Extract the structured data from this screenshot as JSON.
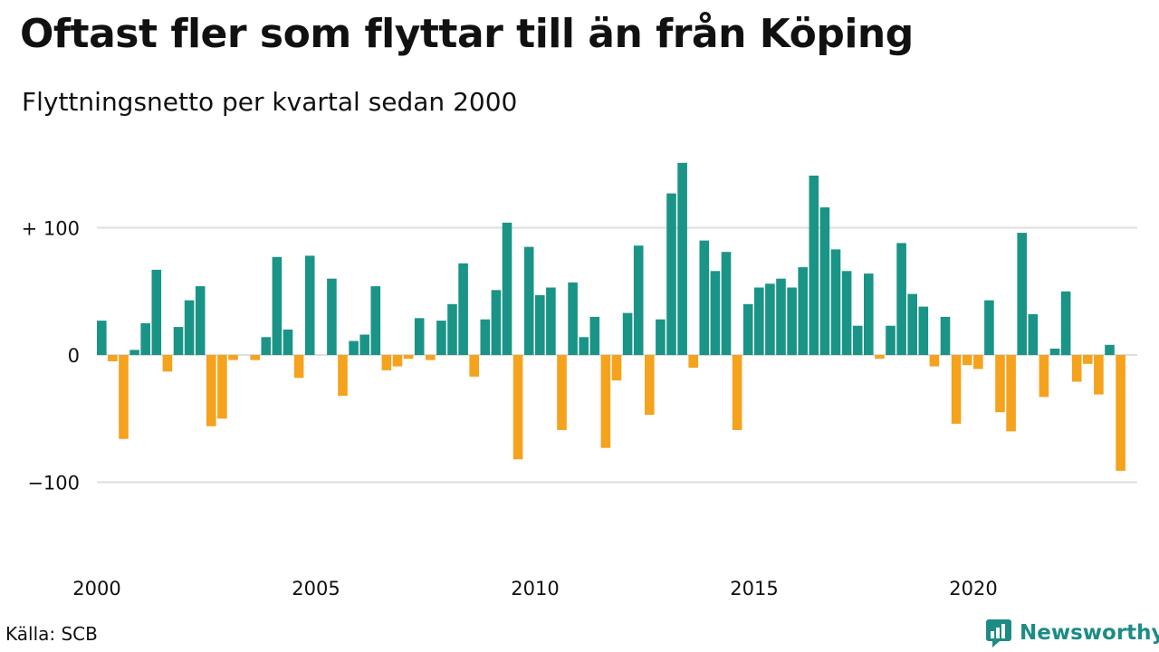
{
  "header": {
    "title": "Oftast fler som flyttar till än från Köping",
    "subtitle": "Flyttningsnetto per kvartal sedan 2000"
  },
  "footer": {
    "source": "Källa: SCB",
    "brand": "Newsworthy",
    "brand_icon": "chart-bubble-icon"
  },
  "colors": {
    "positive": "#1a9486",
    "negative": "#f5a21d",
    "grid": "#dedede",
    "brand": "#1c8c85"
  },
  "chart_data": {
    "type": "bar",
    "x_start": "2000 Q1",
    "x_ticks": [
      2000,
      2005,
      2010,
      2015,
      2020
    ],
    "y_ticks": [
      -100,
      0,
      100
    ],
    "y_tick_labels": [
      "−100",
      "0",
      "+ 100"
    ],
    "ylim": [
      -160,
      160
    ],
    "grid": true,
    "values": [
      27,
      -5,
      -66,
      4,
      25,
      67,
      -13,
      22,
      43,
      54,
      -56,
      -50,
      -4,
      0,
      -4,
      14,
      77,
      20,
      -18,
      78,
      0,
      60,
      -32,
      11,
      16,
      54,
      -12,
      -9,
      -3,
      29,
      -4,
      27,
      40,
      72,
      -17,
      28,
      51,
      104,
      -82,
      85,
      47,
      53,
      -59,
      57,
      14,
      30,
      -73,
      -20,
      33,
      86,
      -47,
      28,
      127,
      151,
      -10,
      90,
      66,
      81,
      -59,
      40,
      53,
      56,
      60,
      53,
      69,
      141,
      116,
      83,
      66,
      23,
      64,
      -3,
      23,
      88,
      48,
      38,
      -9,
      30,
      -54,
      -8,
      -11,
      43,
      -45,
      -60,
      96,
      32,
      -33,
      5,
      50,
      -21,
      -7,
      -31,
      8,
      -91
    ]
  }
}
